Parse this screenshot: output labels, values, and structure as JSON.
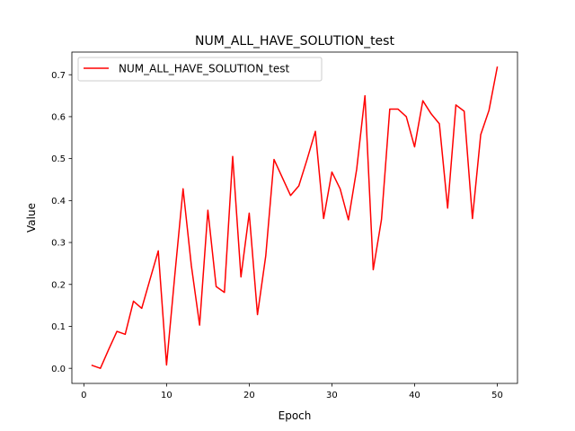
{
  "chart_data": {
    "type": "line",
    "title": "NUM_ALL_HAVE_SOLUTION_test",
    "xlabel": "Epoch",
    "ylabel": "Value",
    "xlim": [
      -1.45,
      52.45
    ],
    "ylim": [
      -0.036,
      0.754
    ],
    "xticks": [
      0,
      10,
      20,
      30,
      40,
      50
    ],
    "yticks": [
      0.0,
      0.1,
      0.2,
      0.3,
      0.4,
      0.5,
      0.6,
      0.7
    ],
    "ytick_labels": [
      "0.0",
      "0.1",
      "0.2",
      "0.3",
      "0.4",
      "0.5",
      "0.6",
      "0.7"
    ],
    "legend_position": "upper-left",
    "grid": false,
    "series": [
      {
        "name": "NUM_ALL_HAVE_SOLUTION_test",
        "color": "#ff0000",
        "x": [
          1,
          2,
          3,
          4,
          5,
          6,
          7,
          8,
          9,
          10,
          11,
          12,
          13,
          14,
          15,
          16,
          17,
          18,
          19,
          20,
          21,
          22,
          23,
          24,
          25,
          26,
          27,
          28,
          29,
          30,
          31,
          32,
          33,
          34,
          35,
          36,
          37,
          38,
          39,
          40,
          41,
          42,
          43,
          44,
          45,
          46,
          47,
          48,
          49,
          50
        ],
        "values": [
          0.007,
          0.0,
          0.045,
          0.088,
          0.081,
          0.16,
          0.143,
          0.212,
          0.28,
          0.008,
          0.222,
          0.428,
          0.245,
          0.103,
          0.377,
          0.195,
          0.181,
          0.505,
          0.218,
          0.37,
          0.128,
          0.268,
          0.498,
          0.455,
          0.412,
          0.435,
          0.498,
          0.565,
          0.357,
          0.468,
          0.428,
          0.354,
          0.475,
          0.65,
          0.235,
          0.355,
          0.618,
          0.618,
          0.6,
          0.528,
          0.638,
          0.607,
          0.583,
          0.382,
          0.628,
          0.613,
          0.357,
          0.557,
          0.615,
          0.718
        ]
      }
    ]
  }
}
